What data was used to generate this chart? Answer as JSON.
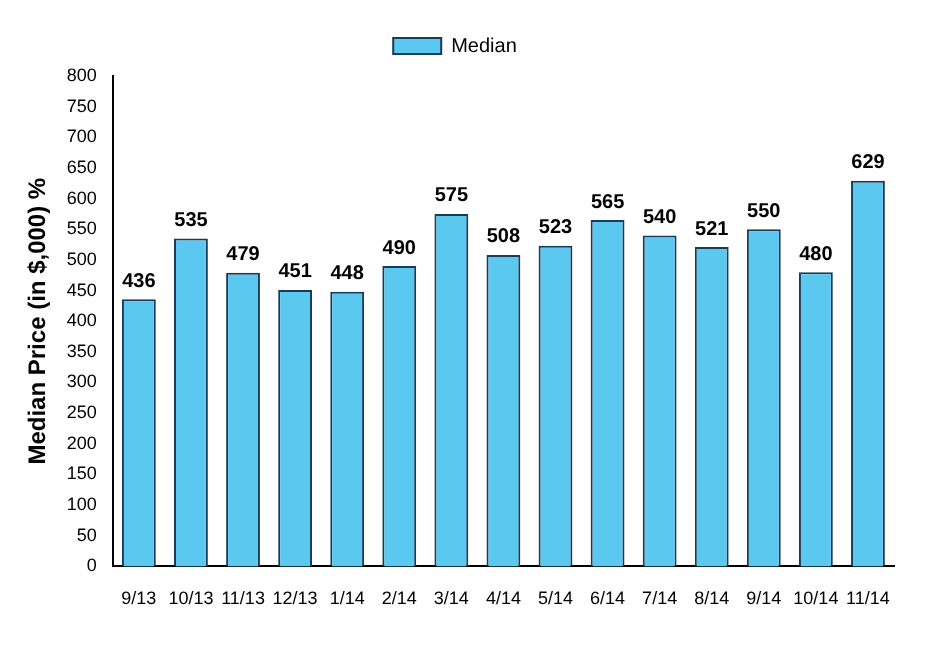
{
  "chart_data": {
    "type": "bar",
    "ylabel": "Median Price (in $,000) %",
    "categories": [
      "9/13",
      "10/13",
      "11/13",
      "12/13",
      "1/14",
      "2/14",
      "3/14",
      "4/14",
      "5/14",
      "6/14",
      "7/14",
      "8/14",
      "9/14",
      "10/14",
      "11/14"
    ],
    "series": [
      {
        "name": "Median",
        "color": "#5bc8f0",
        "values": [
          436,
          535,
          479,
          451,
          448,
          490,
          575,
          508,
          523,
          565,
          540,
          521,
          550,
          480,
          629
        ]
      }
    ],
    "ylim": [
      0,
      800
    ],
    "yticks": [
      0,
      50,
      100,
      150,
      200,
      250,
      300,
      350,
      400,
      450,
      500,
      550,
      600,
      650,
      700,
      750,
      800
    ],
    "data_labels": true,
    "legend": "top",
    "grid": false
  }
}
